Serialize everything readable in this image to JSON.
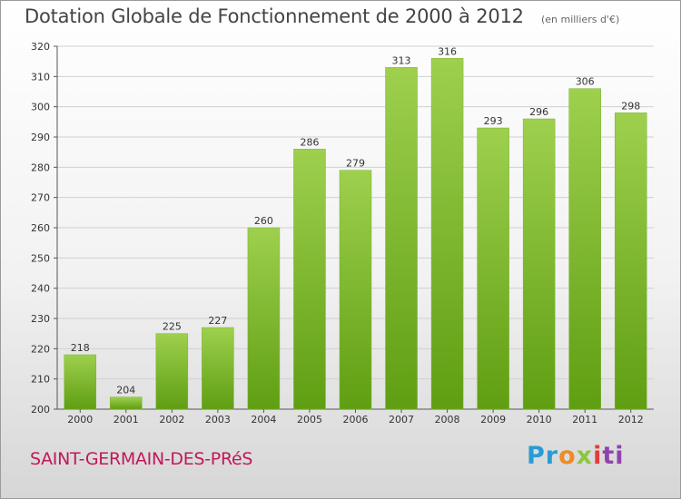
{
  "header": {
    "title": "Dotation Globale de Fonctionnement de 2000 à 2012",
    "unit": "(en milliers d'€)"
  },
  "footer": {
    "place": "SAINT-GERMAIN-DES-PRéS",
    "logo_parts": [
      "Pr",
      "o",
      "x",
      "i",
      "ti"
    ]
  },
  "colors": {
    "bar_top": "#9ed04e",
    "bar_bottom": "#5f9e12",
    "grid": "#d0d0d0",
    "place": "#c2185b"
  },
  "chart_data": {
    "type": "bar",
    "title": "Dotation Globale de Fonctionnement de 2000 à 2012",
    "subtitle": "(en milliers d'€)",
    "xlabel": "",
    "ylabel": "",
    "categories": [
      "2000",
      "2001",
      "2002",
      "2003",
      "2004",
      "2005",
      "2006",
      "2007",
      "2008",
      "2009",
      "2010",
      "2011",
      "2012"
    ],
    "values": [
      218,
      204,
      225,
      227,
      260,
      286,
      279,
      313,
      316,
      293,
      296,
      306,
      298
    ],
    "ylim": [
      200,
      320
    ],
    "yticks": [
      200,
      210,
      220,
      230,
      240,
      250,
      260,
      270,
      280,
      290,
      300,
      310,
      320
    ],
    "grid": true,
    "legend": "none"
  }
}
